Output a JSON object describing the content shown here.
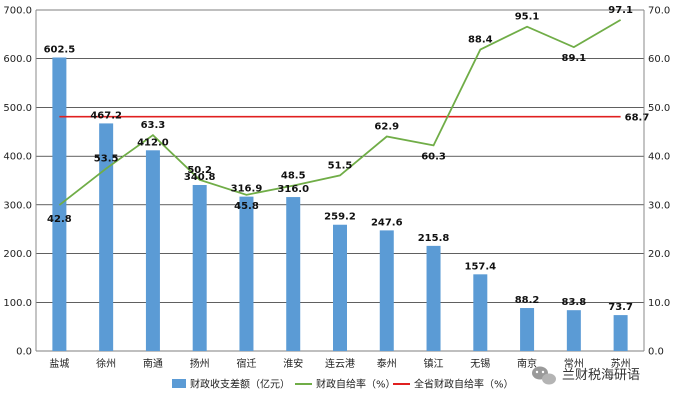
{
  "chart_data": {
    "type": "bar",
    "categories": [
      "盐城",
      "徐州",
      "南通",
      "扬州",
      "宿迁",
      "淮安",
      "连云港",
      "泰州",
      "镇江",
      "无锡",
      "南京",
      "常州",
      "苏州"
    ],
    "series": [
      {
        "name": "财政收支差额（亿元）",
        "type": "bar",
        "axis": "left",
        "color": "#5b9bd5",
        "values": [
          602.5,
          467.2,
          412.0,
          340.8,
          316.9,
          316.0,
          259.2,
          247.6,
          215.8,
          157.4,
          88.2,
          83.8,
          73.7
        ]
      },
      {
        "name": "财政自给率（%）",
        "type": "line",
        "axis": "right",
        "color": "#70ad47",
        "values": [
          42.8,
          53.5,
          63.3,
          50.2,
          45.8,
          48.5,
          51.5,
          62.9,
          60.3,
          88.4,
          95.1,
          89.1,
          97.1
        ]
      },
      {
        "name": "全省财政自给率（%）",
        "type": "line",
        "axis": "right",
        "color": "#e02020",
        "values": [
          68.7,
          68.7,
          68.7,
          68.7,
          68.7,
          68.7,
          68.7,
          68.7,
          68.7,
          68.7,
          68.7,
          68.7,
          68.7
        ]
      }
    ],
    "y_left": {
      "min": 0,
      "max": 700,
      "step": 100,
      "decimals": 1
    },
    "y_right": {
      "min": 0,
      "max": 100,
      "step": 10,
      "decimals": 1
    },
    "grid": true,
    "legend": "bottom",
    "reference_label": "68.7"
  },
  "watermark": {
    "text": "兰财税海研语"
  },
  "colors": {
    "grid": "#000000",
    "axis": "#888888"
  }
}
